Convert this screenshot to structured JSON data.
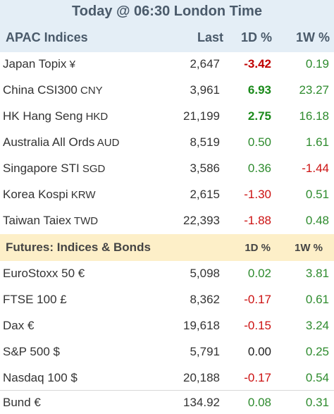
{
  "title": "Today @ 06:30 London Time",
  "apac": {
    "header": {
      "name": "APAC Indices",
      "last": "Last",
      "d1": "1D %",
      "w1": "1W %"
    },
    "rows": [
      {
        "name": "Japan Topix",
        "cur": " ¥",
        "last": "2,647",
        "d1": "-3.42",
        "w1": "0.19"
      },
      {
        "name": "China CSI300",
        "cur": " CNY",
        "last": "3,961",
        "d1": "6.93",
        "w1": "23.27"
      },
      {
        "name": "HK Hang Seng",
        "cur": " HKD",
        "last": "21,199",
        "d1": "2.75",
        "w1": "16.18"
      },
      {
        "name": "Australia All Ords",
        "cur": " AUD",
        "last": "8,519",
        "d1": "0.50",
        "w1": "1.61"
      },
      {
        "name": "Singapore STI",
        "cur": " SGD",
        "last": "3,586",
        "d1": "0.36",
        "w1": "-1.44"
      },
      {
        "name": "Korea Kospi",
        "cur": " KRW",
        "last": "2,615",
        "d1": "-1.30",
        "w1": "0.51"
      },
      {
        "name": "Taiwan Taiex",
        "cur": " TWD",
        "last": "22,393",
        "d1": "-1.88",
        "w1": "0.48"
      }
    ]
  },
  "futures": {
    "header": {
      "name": "Futures: Indices & Bonds",
      "d1": "1D %",
      "w1": "1W %"
    },
    "rows": [
      {
        "name": "EuroStoxx 50 €",
        "last": "5,098",
        "d1": "0.02",
        "w1": "3.81"
      },
      {
        "name": "FTSE 100  £",
        "last": "8,362",
        "d1": "-0.17",
        "w1": "0.61"
      },
      {
        "name": "Dax  €",
        "last": "19,618",
        "d1": "-0.15",
        "w1": "3.24"
      },
      {
        "name": "S&P 500 $",
        "last": "5,791",
        "d1": "0.00",
        "w1": "0.25"
      },
      {
        "name": "Nasdaq 100 $",
        "last": "20,188",
        "d1": "-0.17",
        "w1": "0.54"
      },
      {
        "name": "Bund  €",
        "last": "134.92",
        "d1": "0.08",
        "w1": "0.31"
      }
    ]
  },
  "colors": {
    "positive": "#2e8b2e",
    "negative": "#cc1111",
    "header_bg": "#e4eef6",
    "futures_bg": "#fdefc8"
  }
}
